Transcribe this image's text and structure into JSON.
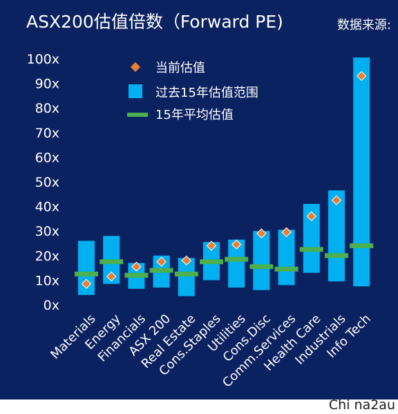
{
  "title": "ASX200估值倍数（Forward PE)",
  "source_label": "数据来源:",
  "watermark": "Chi na2au",
  "colors": {
    "background": "#0b2260",
    "range_bar": "#00b0f0",
    "average": "#4caf50",
    "current": "#ed7d31",
    "text": "#ffffff",
    "watermark": "#1a1a1a"
  },
  "chart_data": {
    "type": "bar",
    "title": "ASX200估值倍数（Forward PE)",
    "y_tick_labels": [
      "0x",
      "10x",
      "20x",
      "30x",
      "40x",
      "50x",
      "60x",
      "70x",
      "80x",
      "90x",
      "100x"
    ],
    "ylim": [
      0,
      100
    ],
    "grid": false,
    "legend_position": "top-left",
    "legend": [
      {
        "key": "current",
        "label": "当前估值",
        "marker": "diamond"
      },
      {
        "key": "range",
        "label": "过去15年估值范围",
        "marker": "square"
      },
      {
        "key": "average",
        "label": "15年平均估值",
        "marker": "line"
      }
    ],
    "categories": [
      "Materials",
      "Energy",
      "Financials",
      "ASX 200",
      "Real Estate",
      "Cons.Staples",
      "Utilities",
      "Cons.Disc",
      "Comm.Services",
      "Health Care",
      "Industrials",
      "Info Tech"
    ],
    "series": [
      {
        "name": "过去15年估值范围",
        "kind": "range",
        "low": [
          4,
          8.5,
          6.5,
          7,
          3.5,
          10,
          7,
          6,
          8,
          13,
          9.5,
          7.5
        ],
        "high": [
          26,
          28,
          17,
          20,
          19,
          25.5,
          26.5,
          30,
          30.5,
          41,
          46.5,
          100.5
        ]
      },
      {
        "name": "15年平均估值",
        "kind": "average",
        "values": [
          12.5,
          17.5,
          12,
          14,
          12.5,
          17.5,
          18.5,
          15.5,
          14.5,
          22.5,
          20,
          24
        ]
      },
      {
        "name": "当前估值",
        "kind": "current",
        "values": [
          8.5,
          11.5,
          15.5,
          17.5,
          18,
          24,
          24.5,
          29,
          29.5,
          36,
          42.5,
          93
        ]
      }
    ]
  }
}
